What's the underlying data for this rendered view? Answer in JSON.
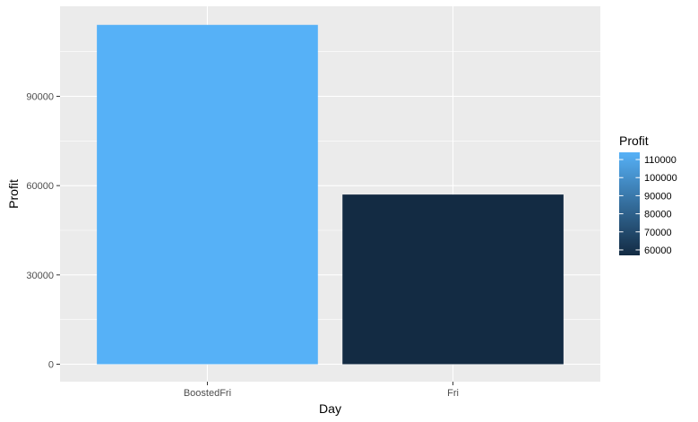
{
  "chart_data": {
    "type": "bar",
    "categories": [
      "BoostedFri",
      "Fri"
    ],
    "values": [
      114000,
      57000
    ],
    "xlabel": "Day",
    "ylabel": "Profit",
    "ylim": [
      0,
      120000
    ],
    "y_ticks": [
      0,
      30000,
      60000,
      90000
    ],
    "y_tick_labels": [
      "0",
      "30000",
      "60000",
      "90000"
    ],
    "grid": true,
    "legend": {
      "title": "Profit",
      "placement": "right",
      "type": "colorbar",
      "range": [
        57000,
        114000
      ],
      "breaks": [
        60000,
        70000,
        80000,
        90000,
        100000,
        110000
      ],
      "labels": [
        "60000",
        "70000",
        "80000",
        "90000",
        "100000",
        "110000"
      ],
      "color_low": "#132B43",
      "color_high": "#56B1F7"
    }
  }
}
